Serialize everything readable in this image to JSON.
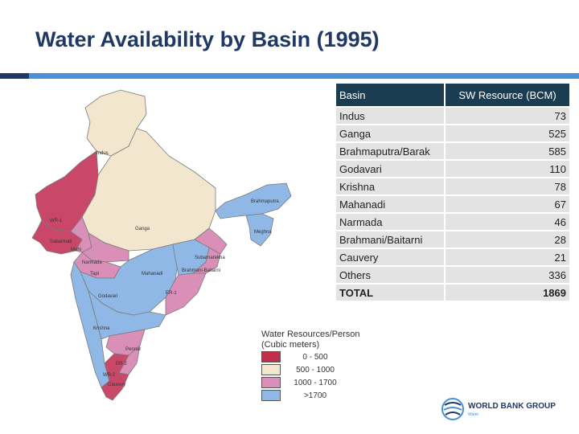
{
  "title": "Water Availability by Basin (1995)",
  "table": {
    "headers": [
      "Basin",
      "SW Resource (BCM)"
    ],
    "rows": [
      {
        "basin": "Indus",
        "value": "73"
      },
      {
        "basin": "Ganga",
        "value": "525"
      },
      {
        "basin": "Brahmaputra/Barak",
        "value": "585"
      },
      {
        "basin": "Godavari",
        "value": "110"
      },
      {
        "basin": "Krishna",
        "value": "78"
      },
      {
        "basin": "Mahanadi",
        "value": "67"
      },
      {
        "basin": "Narmada",
        "value": "46"
      },
      {
        "basin": "Brahmani/Baitarni",
        "value": "28"
      },
      {
        "basin": "Cauvery",
        "value": "21"
      },
      {
        "basin": "Others",
        "value": "336"
      }
    ],
    "total": {
      "basin": "TOTAL",
      "value": "1869"
    }
  },
  "map": {
    "labels": {
      "indus": "Indus",
      "ganga": "Ganga",
      "brahmaputra": "Brahmaputra",
      "meghna": "Meghna",
      "wr1": "WR-1",
      "sabarmati": "Sabarmati",
      "mahi": "Mahi",
      "narmada": "Narmada",
      "tapi": "Tapi",
      "subarnarekha": "Subarnarekha",
      "brahmani": "Brahmani-Baitarni",
      "mahanadi": "Mahanadi",
      "godavari": "Godavari",
      "er1": "ER-1",
      "er2": "ER-2",
      "krishna": "Krishna",
      "pennar": "Pennar",
      "wr2": "WR-2",
      "cauvery": "Cauvery"
    },
    "legend": {
      "title": "Water Resources/Person (Cubic meters)",
      "items": [
        {
          "label": "0 - 500",
          "color": "#c0304a"
        },
        {
          "label": "500 - 1000",
          "color": "#f3e6cf"
        },
        {
          "label": "1000 - 1700",
          "color": "#d98fb8"
        },
        {
          "label": ">1700",
          "color": "#8fb8e6"
        }
      ]
    }
  },
  "logo": {
    "name": "WORLD BANK GROUP",
    "sub": "Water"
  },
  "colors": {
    "title": "#1f3864",
    "header_bg": "#1b3d52",
    "row_bg": "#e3e3e3",
    "accent": "#4a90d9"
  }
}
